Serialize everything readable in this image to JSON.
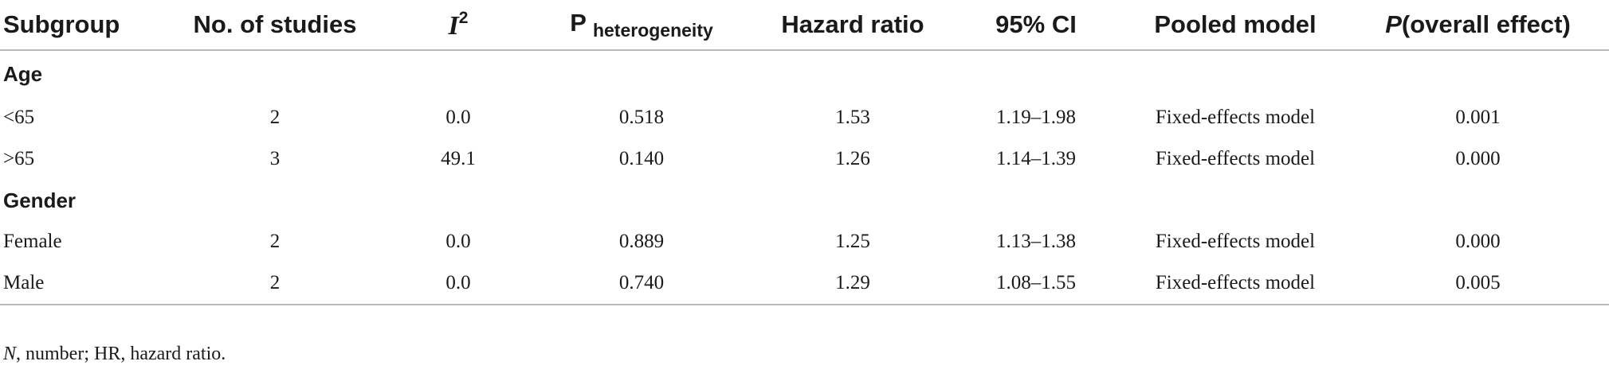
{
  "headers": {
    "subgroup": "Subgroup",
    "studies": "No. of studies",
    "i2_base": "I",
    "i2_sup": "2",
    "p_het_base": "P",
    "p_het_sub": "heterogeneity",
    "hr": "Hazard ratio",
    "ci": "95% CI",
    "model": "Pooled model",
    "p_overall_italic": "P",
    "p_overall_rest": "(overall effect)"
  },
  "groups": {
    "age": {
      "label": "Age",
      "rows": [
        {
          "subgroup": "<65",
          "studies": "2",
          "i2": "0.0",
          "p_het": "0.518",
          "hr": "1.53",
          "ci": "1.19–1.98",
          "model": "Fixed-effects model",
          "p_overall": "0.001"
        },
        {
          "subgroup": ">65",
          "studies": "3",
          "i2": "49.1",
          "p_het": "0.140",
          "hr": "1.26",
          "ci": "1.14–1.39",
          "model": "Fixed-effects model",
          "p_overall": "0.000"
        }
      ]
    },
    "gender": {
      "label": "Gender",
      "rows": [
        {
          "subgroup": "Female",
          "studies": "2",
          "i2": "0.0",
          "p_het": "0.889",
          "hr": "1.25",
          "ci": "1.13–1.38",
          "model": "Fixed-effects model",
          "p_overall": "0.000"
        },
        {
          "subgroup": "Male",
          "studies": "2",
          "i2": "0.0",
          "p_het": "0.740",
          "hr": "1.29",
          "ci": "1.08–1.55",
          "model": "Fixed-effects model",
          "p_overall": "0.005"
        }
      ]
    }
  },
  "footnote": {
    "n_italic": "N",
    "rest": ", number; HR, hazard ratio."
  }
}
